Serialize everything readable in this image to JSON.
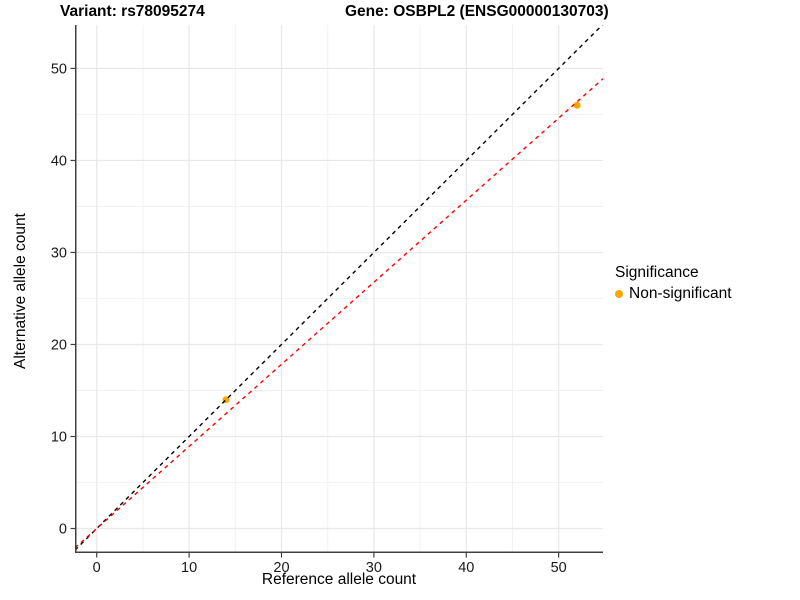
{
  "header": {
    "title_left": "Variant: rs78095274",
    "title_right": "Gene: OSBPL2 (ENSG00000130703)"
  },
  "legend": {
    "title": "Significance",
    "items": [
      {
        "label": "Non-significant",
        "color": "#FFA500"
      }
    ]
  },
  "chart_data": {
    "type": "scatter",
    "xlabel": "Reference allele count",
    "ylabel": "Alternative allele count",
    "xlim": [
      -2.35,
      54.8
    ],
    "ylim": [
      -2.66,
      54.72
    ],
    "xticks": [
      0,
      10,
      20,
      30,
      40,
      50
    ],
    "yticks": [
      0,
      10,
      20,
      30,
      40,
      50
    ],
    "xticks_minor": [
      5,
      15,
      25,
      35,
      45
    ],
    "yticks_minor": [
      5,
      15,
      25,
      35,
      45
    ],
    "grid": "major+minor light gray on white, no top/right border",
    "legend_position": "right",
    "series": [
      {
        "name": "Non-significant",
        "color": "#FFA500",
        "points": [
          [
            14,
            14
          ],
          [
            52,
            46
          ]
        ]
      }
    ],
    "lines": [
      {
        "name": "identity",
        "slope": 1.0,
        "intercept": 0.0,
        "color": "#000000",
        "dashed": true
      },
      {
        "name": "fit",
        "slope": 0.892,
        "intercept": 0.0,
        "color": "#FF0000",
        "dashed": true
      }
    ]
  },
  "colors": {
    "background": "#FFFFFF",
    "grid_major": "#E8E8E8",
    "grid_minor": "#F2F2F2",
    "axis_line": "#404040",
    "tick_text": "#1A1A1A"
  }
}
